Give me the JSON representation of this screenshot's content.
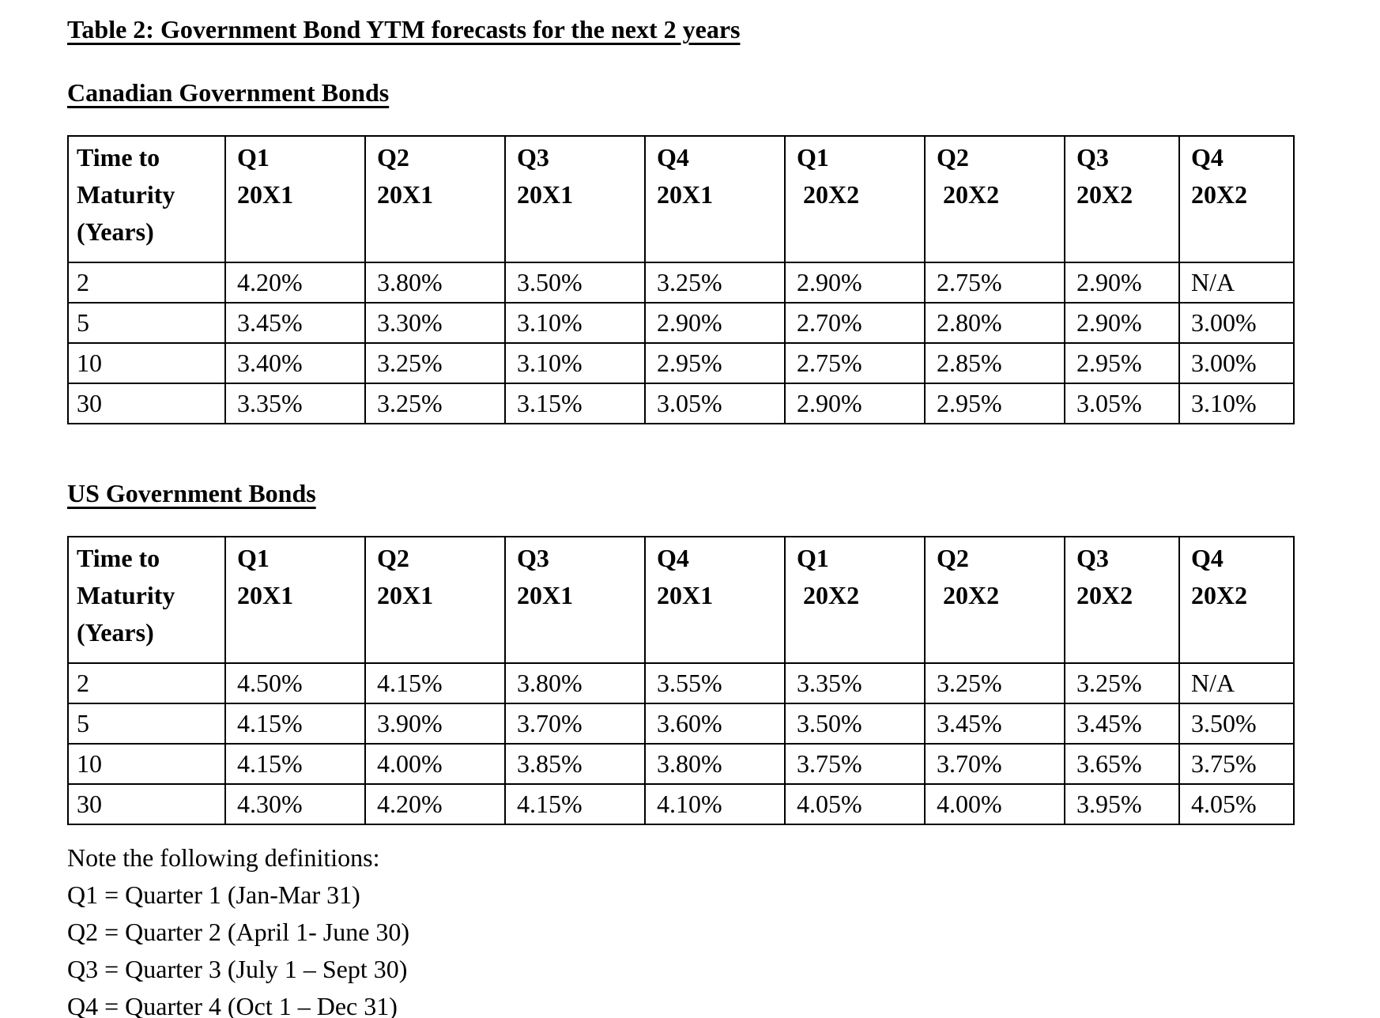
{
  "document": {
    "title": "Table 2: Government Bond YTM forecasts for the next 2 years"
  },
  "tables": [
    {
      "heading": "Canadian Government Bonds",
      "columns": [
        {
          "lines": [
            "Time to",
            "Maturity",
            "(Years)"
          ]
        },
        {
          "lines": [
            "Q1",
            "20X1"
          ]
        },
        {
          "lines": [
            "Q2",
            "20X1"
          ]
        },
        {
          "lines": [
            "Q3",
            "20X1"
          ]
        },
        {
          "lines": [
            "Q4",
            "20X1"
          ]
        },
        {
          "lines": [
            "Q1",
            " 20X2"
          ]
        },
        {
          "lines": [
            "Q2",
            " 20X2"
          ]
        },
        {
          "lines": [
            "Q3",
            "20X2"
          ]
        },
        {
          "lines": [
            "Q4",
            "20X2"
          ]
        }
      ],
      "rows": [
        {
          "maturity": "2",
          "values": [
            "4.20%",
            "3.80%",
            "3.50%",
            "3.25%",
            "2.90%",
            "2.75%",
            "2.90%",
            "N/A"
          ]
        },
        {
          "maturity": "5",
          "values": [
            "3.45%",
            "3.30%",
            "3.10%",
            "2.90%",
            "2.70%",
            "2.80%",
            "2.90%",
            "3.00%"
          ]
        },
        {
          "maturity": "10",
          "values": [
            "3.40%",
            "3.25%",
            "3.10%",
            "2.95%",
            "2.75%",
            "2.85%",
            "2.95%",
            "3.00%"
          ]
        },
        {
          "maturity": "30",
          "values": [
            "3.35%",
            "3.25%",
            "3.15%",
            "3.05%",
            "2.90%",
            "2.95%",
            "3.05%",
            "3.10%"
          ]
        }
      ]
    },
    {
      "heading": "US Government Bonds",
      "columns": [
        {
          "lines": [
            "Time to",
            "Maturity",
            "(Years)"
          ]
        },
        {
          "lines": [
            "Q1",
            "20X1"
          ]
        },
        {
          "lines": [
            "Q2",
            "20X1"
          ]
        },
        {
          "lines": [
            "Q3",
            "20X1"
          ]
        },
        {
          "lines": [
            "Q4",
            "20X1"
          ]
        },
        {
          "lines": [
            "Q1",
            " 20X2"
          ]
        },
        {
          "lines": [
            "Q2",
            " 20X2"
          ]
        },
        {
          "lines": [
            "Q3",
            "20X2"
          ]
        },
        {
          "lines": [
            "Q4",
            "20X2"
          ]
        }
      ],
      "rows": [
        {
          "maturity": "2",
          "values": [
            "4.50%",
            "4.15%",
            "3.80%",
            "3.55%",
            "3.35%",
            "3.25%",
            "3.25%",
            "N/A"
          ]
        },
        {
          "maturity": "5",
          "values": [
            "4.15%",
            "3.90%",
            "3.70%",
            "3.60%",
            "3.50%",
            "3.45%",
            "3.45%",
            "3.50%"
          ]
        },
        {
          "maturity": "10",
          "values": [
            "4.15%",
            "4.00%",
            "3.85%",
            "3.80%",
            "3.75%",
            "3.70%",
            "3.65%",
            "3.75%"
          ]
        },
        {
          "maturity": "30",
          "values": [
            "4.30%",
            "4.20%",
            "4.15%",
            "4.10%",
            "4.05%",
            "4.00%",
            "3.95%",
            "4.05%"
          ]
        }
      ]
    }
  ],
  "notes": {
    "intro": "Note the following definitions:",
    "definitions": [
      "Q1 = Quarter 1 (Jan-Mar 31)",
      "Q2 = Quarter 2 (April 1- June 30)",
      "Q3 = Quarter 3 (July 1 – Sept 30)",
      "Q4 = Quarter 4 (Oct 1 – Dec 31)"
    ]
  }
}
